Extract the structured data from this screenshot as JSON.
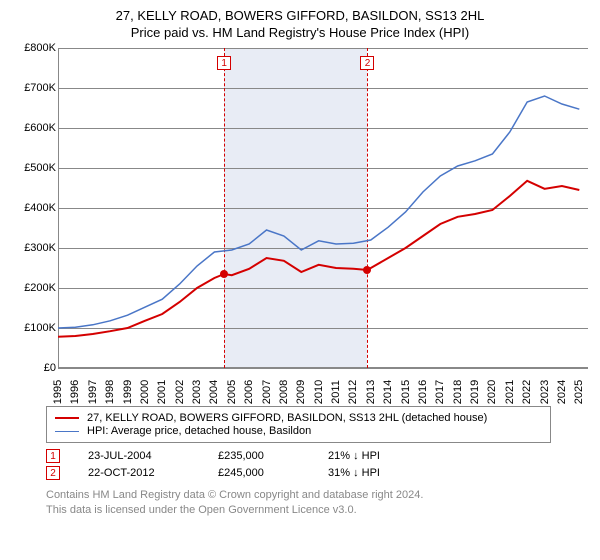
{
  "title": {
    "line1": "27, KELLY ROAD, BOWERS GIFFORD, BASILDON, SS13 2HL",
    "line2": "Price paid vs. HM Land Registry's House Price Index (HPI)"
  },
  "chart": {
    "type": "line",
    "background_color": "#ffffff",
    "grid_color": "#888888",
    "border_color": "#888888",
    "x_axis": {
      "min": 1995,
      "max": 2025.5,
      "ticks": [
        1995,
        1996,
        1997,
        1998,
        1999,
        2000,
        2001,
        2002,
        2003,
        2004,
        2005,
        2006,
        2007,
        2008,
        2009,
        2010,
        2011,
        2012,
        2013,
        2014,
        2015,
        2016,
        2017,
        2018,
        2019,
        2020,
        2021,
        2022,
        2023,
        2024,
        2025
      ],
      "tick_labels": [
        "1995",
        "1996",
        "1997",
        "1998",
        "1999",
        "2000",
        "2001",
        "2002",
        "2003",
        "2004",
        "2005",
        "2006",
        "2007",
        "2008",
        "2009",
        "2010",
        "2011",
        "2012",
        "2013",
        "2014",
        "2015",
        "2016",
        "2017",
        "2018",
        "2019",
        "2020",
        "2021",
        "2022",
        "2023",
        "2024",
        "2025"
      ],
      "label_fontsize": 11
    },
    "y_axis": {
      "min": 0,
      "max": 800000,
      "ticks": [
        0,
        100000,
        200000,
        300000,
        400000,
        500000,
        600000,
        700000,
        800000
      ],
      "tick_labels": [
        "£0",
        "£100K",
        "£200K",
        "£300K",
        "£400K",
        "£500K",
        "£600K",
        "£700K",
        "£800K"
      ],
      "label_fontsize": 11
    },
    "band": {
      "x_from": 2004.56,
      "x_to": 2012.81,
      "color": "#e8ecf5"
    },
    "series": [
      {
        "id": "property",
        "label": "27, KELLY ROAD, BOWERS GIFFORD, BASILDON, SS13 2HL (detached house)",
        "color": "#d40000",
        "stroke_width": 2,
        "points": [
          [
            1995,
            78000
          ],
          [
            1996,
            80000
          ],
          [
            1997,
            85000
          ],
          [
            1998,
            92000
          ],
          [
            1999,
            100000
          ],
          [
            2000,
            118000
          ],
          [
            2001,
            135000
          ],
          [
            2002,
            165000
          ],
          [
            2003,
            200000
          ],
          [
            2004,
            225000
          ],
          [
            2004.56,
            235000
          ],
          [
            2005,
            232000
          ],
          [
            2006,
            248000
          ],
          [
            2007,
            275000
          ],
          [
            2008,
            268000
          ],
          [
            2009,
            240000
          ],
          [
            2010,
            258000
          ],
          [
            2011,
            250000
          ],
          [
            2012,
            248000
          ],
          [
            2012.81,
            245000
          ],
          [
            2013,
            250000
          ],
          [
            2014,
            275000
          ],
          [
            2015,
            300000
          ],
          [
            2016,
            330000
          ],
          [
            2017,
            360000
          ],
          [
            2018,
            378000
          ],
          [
            2019,
            385000
          ],
          [
            2020,
            395000
          ],
          [
            2021,
            430000
          ],
          [
            2022,
            468000
          ],
          [
            2023,
            448000
          ],
          [
            2024,
            455000
          ],
          [
            2025,
            445000
          ]
        ]
      },
      {
        "id": "hpi",
        "label": "HPI: Average price, detached house, Basildon",
        "color": "#4a76c7",
        "stroke_width": 1.5,
        "points": [
          [
            1995,
            100000
          ],
          [
            1996,
            102000
          ],
          [
            1997,
            108000
          ],
          [
            1998,
            118000
          ],
          [
            1999,
            132000
          ],
          [
            2000,
            152000
          ],
          [
            2001,
            172000
          ],
          [
            2002,
            210000
          ],
          [
            2003,
            255000
          ],
          [
            2004,
            290000
          ],
          [
            2005,
            295000
          ],
          [
            2006,
            310000
          ],
          [
            2007,
            345000
          ],
          [
            2008,
            330000
          ],
          [
            2009,
            295000
          ],
          [
            2010,
            318000
          ],
          [
            2011,
            310000
          ],
          [
            2012,
            312000
          ],
          [
            2013,
            320000
          ],
          [
            2014,
            352000
          ],
          [
            2015,
            390000
          ],
          [
            2016,
            440000
          ],
          [
            2017,
            480000
          ],
          [
            2018,
            505000
          ],
          [
            2019,
            518000
          ],
          [
            2020,
            535000
          ],
          [
            2021,
            590000
          ],
          [
            2022,
            665000
          ],
          [
            2023,
            680000
          ],
          [
            2024,
            660000
          ],
          [
            2025,
            647000
          ]
        ]
      }
    ],
    "markers": [
      {
        "n": "1",
        "x": 2004.56,
        "y": 235000
      },
      {
        "n": "2",
        "x": 2012.81,
        "y": 245000
      }
    ],
    "marker_box_color": "#d40000"
  },
  "legend": {
    "items": [
      {
        "series": "property"
      },
      {
        "series": "hpi"
      }
    ]
  },
  "transactions": [
    {
      "n": "1",
      "date": "23-JUL-2004",
      "price": "£235,000",
      "pct": "21% ↓ HPI"
    },
    {
      "n": "2",
      "date": "22-OCT-2012",
      "price": "£245,000",
      "pct": "31% ↓ HPI"
    }
  ],
  "footnote": {
    "line1": "Contains HM Land Registry data © Crown copyright and database right 2024.",
    "line2": "This data is licensed under the Open Government Licence v3.0."
  }
}
